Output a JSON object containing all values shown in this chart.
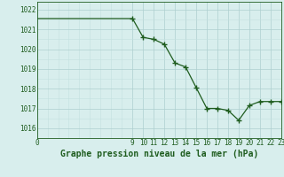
{
  "x": [
    0,
    9,
    10,
    11,
    12,
    13,
    14,
    15,
    16,
    17,
    18,
    19,
    20,
    21,
    22,
    23
  ],
  "y": [
    1021.55,
    1021.55,
    1020.6,
    1020.5,
    1020.25,
    1019.3,
    1019.1,
    1018.05,
    1017.0,
    1017.0,
    1016.9,
    1016.4,
    1017.15,
    1017.35,
    1017.35,
    1017.35
  ],
  "line_color": "#1e5c1e",
  "marker_color": "#1e5c1e",
  "bg_color": "#d8eeed",
  "grid_color_major": "#aecfcf",
  "grid_color_minor": "#c4e0e0",
  "title": "Graphe pression niveau de la mer (hPa)",
  "ylim_min": 1015.5,
  "ylim_max": 1022.4,
  "xlim_min": 0,
  "xlim_max": 23,
  "yticks": [
    1016,
    1017,
    1018,
    1019,
    1020,
    1021,
    1022
  ],
  "xticks": [
    0,
    9,
    10,
    11,
    12,
    13,
    14,
    15,
    16,
    17,
    18,
    19,
    20,
    21,
    22,
    23
  ],
  "tick_fontsize": 5.5,
  "title_fontsize": 7.0,
  "title_fontweight": "bold"
}
